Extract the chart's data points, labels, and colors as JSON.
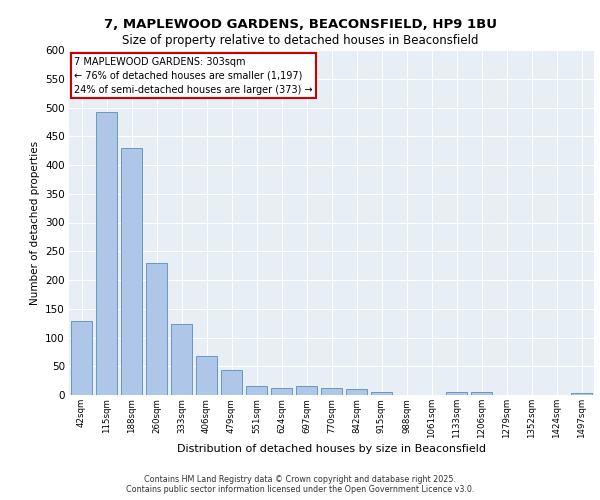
{
  "title1": "7, MAPLEWOOD GARDENS, BEACONSFIELD, HP9 1BU",
  "title2": "Size of property relative to detached houses in Beaconsfield",
  "xlabel": "Distribution of detached houses by size in Beaconsfield",
  "ylabel": "Number of detached properties",
  "categories": [
    "42sqm",
    "115sqm",
    "188sqm",
    "260sqm",
    "333sqm",
    "406sqm",
    "479sqm",
    "551sqm",
    "624sqm",
    "697sqm",
    "770sqm",
    "842sqm",
    "915sqm",
    "988sqm",
    "1061sqm",
    "1133sqm",
    "1206sqm",
    "1279sqm",
    "1352sqm",
    "1424sqm",
    "1497sqm"
  ],
  "values": [
    128,
    492,
    430,
    229,
    124,
    68,
    44,
    15,
    12,
    16,
    12,
    10,
    6,
    0,
    0,
    5,
    5,
    0,
    0,
    0,
    3
  ],
  "bar_color": "#aec6e8",
  "bar_edge_color": "#5b8db8",
  "annotation_text": "7 MAPLEWOOD GARDENS: 303sqm\n← 76% of detached houses are smaller (1,197)\n24% of semi-detached houses are larger (373) →",
  "annotation_box_color": "#ffffff",
  "annotation_box_edge": "#cc0000",
  "ylim": [
    0,
    600
  ],
  "yticks": [
    0,
    50,
    100,
    150,
    200,
    250,
    300,
    350,
    400,
    450,
    500,
    550,
    600
  ],
  "bg_color": "#e8eef5",
  "footer1": "Contains HM Land Registry data © Crown copyright and database right 2025.",
  "footer2": "Contains public sector information licensed under the Open Government Licence v3.0."
}
